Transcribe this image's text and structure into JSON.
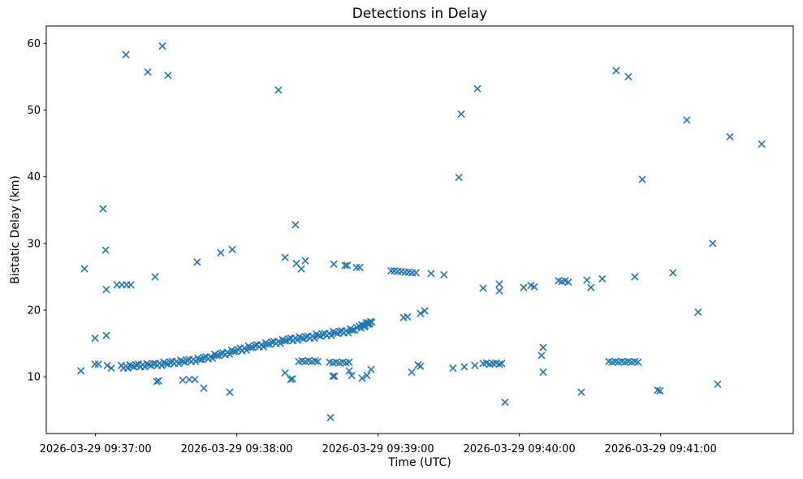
{
  "figure": {
    "title": "Detections in Delay",
    "xlabel": "Time (UTC)",
    "ylabel": "Bistatic Delay (km)"
  },
  "chart_data": {
    "type": "scatter",
    "title": "Detections in Delay",
    "xlabel": "Time (UTC)",
    "ylabel": "Bistatic Delay (km)",
    "marker": "x",
    "marker_color": "#1f77b4",
    "grid": false,
    "legend": null,
    "time_origin": "2026-03-29 09:37:00",
    "x_unit": "seconds relative to time_origin",
    "xlim": [
      -20.9,
      296.3
    ],
    "ylim": [
      1.5,
      62.6
    ],
    "x_ticks": [
      {
        "t": 0,
        "label": "2026-03-29 09:37:00"
      },
      {
        "t": 60,
        "label": "2026-03-29 09:38:00"
      },
      {
        "t": 120,
        "label": "2026-03-29 09:39:00"
      },
      {
        "t": 180,
        "label": "2026-03-29 09:40:00"
      },
      {
        "t": 240,
        "label": "2026-03-29 09:41:00"
      }
    ],
    "y_ticks": [
      10,
      20,
      30,
      40,
      50,
      60
    ],
    "points": [
      [
        28.4,
        59.6
      ],
      [
        12.9,
        58.3
      ],
      [
        22.2,
        55.7
      ],
      [
        30.8,
        55.2
      ],
      [
        3.2,
        35.2
      ],
      [
        77.7,
        53.0
      ],
      [
        84.9,
        32.8
      ],
      [
        221.1,
        55.9
      ],
      [
        226.3,
        55.0
      ],
      [
        162.2,
        53.2
      ],
      [
        155.3,
        49.4
      ],
      [
        154.3,
        39.9
      ],
      [
        251.1,
        48.5
      ],
      [
        269.4,
        46.0
      ],
      [
        282.9,
        44.9
      ],
      [
        232.2,
        39.6
      ],
      [
        262.1,
        30.0
      ],
      [
        -4.7,
        26.2
      ],
      [
        4.3,
        29.0
      ],
      [
        43.2,
        27.2
      ],
      [
        53.2,
        28.6
      ],
      [
        58.1,
        29.1
      ],
      [
        25.3,
        25.0
      ],
      [
        4.6,
        23.1
      ],
      [
        9.1,
        23.8
      ],
      [
        11.2,
        23.8
      ],
      [
        13.2,
        23.8
      ],
      [
        15.0,
        23.8
      ],
      [
        -0.2,
        15.8
      ],
      [
        4.6,
        16.2
      ],
      [
        -6.2,
        10.9
      ],
      [
        -0.2,
        11.9
      ],
      [
        1.2,
        11.9
      ],
      [
        5.0,
        11.7
      ],
      [
        6.7,
        11.3
      ],
      [
        26.0,
        9.3
      ],
      [
        26.8,
        9.4
      ],
      [
        37.0,
        9.5
      ],
      [
        39.8,
        9.6
      ],
      [
        42.2,
        9.6
      ],
      [
        46.0,
        8.3
      ],
      [
        57.0,
        7.7
      ],
      [
        80.5,
        27.9
      ],
      [
        85.3,
        27.0
      ],
      [
        89.1,
        27.4
      ],
      [
        87.4,
        26.2
      ],
      [
        101.2,
        26.9
      ],
      [
        106.0,
        26.7
      ],
      [
        106.9,
        26.7
      ],
      [
        110.8,
        26.4
      ],
      [
        112.2,
        26.4
      ],
      [
        125.5,
        25.9
      ],
      [
        126.9,
        25.9
      ],
      [
        128.4,
        25.8
      ],
      [
        129.9,
        25.8
      ],
      [
        131.5,
        25.7
      ],
      [
        133.0,
        25.7
      ],
      [
        134.5,
        25.6
      ],
      [
        136.1,
        25.6
      ],
      [
        142.5,
        25.5
      ],
      [
        148.0,
        25.3
      ],
      [
        130.8,
        18.9
      ],
      [
        132.5,
        19.0
      ],
      [
        138.0,
        19.5
      ],
      [
        139.8,
        19.9
      ],
      [
        86.3,
        12.3
      ],
      [
        87.7,
        12.4
      ],
      [
        89.1,
        12.3
      ],
      [
        90.5,
        12.4
      ],
      [
        91.9,
        12.3
      ],
      [
        93.3,
        12.4
      ],
      [
        94.4,
        12.3
      ],
      [
        99.4,
        12.2
      ],
      [
        100.8,
        12.1
      ],
      [
        102.2,
        12.2
      ],
      [
        103.6,
        12.1
      ],
      [
        105.0,
        12.2
      ],
      [
        106.4,
        12.1
      ],
      [
        107.7,
        12.2
      ],
      [
        80.5,
        10.6
      ],
      [
        82.9,
        9.6
      ],
      [
        83.6,
        9.7
      ],
      [
        100.8,
        10.1
      ],
      [
        101.5,
        10.1
      ],
      [
        107.7,
        10.9
      ],
      [
        108.8,
        10.2
      ],
      [
        113.2,
        9.8
      ],
      [
        115.3,
        10.2
      ],
      [
        117.0,
        11.1
      ],
      [
        134.3,
        10.7
      ],
      [
        137.0,
        11.8
      ],
      [
        138.0,
        11.6
      ],
      [
        99.8,
        3.9
      ],
      [
        164.6,
        23.3
      ],
      [
        171.5,
        23.9
      ],
      [
        171.5,
        22.9
      ],
      [
        181.8,
        23.4
      ],
      [
        184.9,
        23.7
      ],
      [
        186.3,
        23.5
      ],
      [
        196.6,
        24.4
      ],
      [
        198.0,
        24.3
      ],
      [
        199.4,
        24.4
      ],
      [
        200.8,
        24.2
      ],
      [
        208.7,
        24.5
      ],
      [
        215.2,
        24.7
      ],
      [
        210.4,
        23.4
      ],
      [
        229.0,
        25.0
      ],
      [
        245.2,
        25.6
      ],
      [
        255.9,
        19.7
      ],
      [
        151.8,
        11.3
      ],
      [
        156.6,
        11.5
      ],
      [
        161.1,
        11.7
      ],
      [
        164.6,
        12.0
      ],
      [
        166.0,
        12.1
      ],
      [
        167.4,
        11.9
      ],
      [
        168.8,
        12.0
      ],
      [
        170.1,
        12.1
      ],
      [
        171.5,
        11.9
      ],
      [
        172.5,
        12.0
      ],
      [
        190.1,
        14.4
      ],
      [
        189.4,
        13.2
      ],
      [
        190.1,
        10.7
      ],
      [
        173.9,
        6.2
      ],
      [
        206.3,
        7.7
      ],
      [
        218.0,
        12.3
      ],
      [
        219.4,
        12.2
      ],
      [
        220.8,
        12.3
      ],
      [
        222.1,
        12.2
      ],
      [
        223.5,
        12.3
      ],
      [
        224.9,
        12.2
      ],
      [
        226.3,
        12.3
      ],
      [
        227.7,
        12.2
      ],
      [
        229.1,
        12.3
      ],
      [
        230.4,
        12.2
      ],
      [
        238.7,
        8.0
      ],
      [
        239.7,
        7.9
      ],
      [
        264.2,
        8.9
      ],
      [
        11.0,
        11.7
      ],
      [
        11.9,
        11.3
      ],
      [
        12.8,
        11.6
      ],
      [
        13.7,
        11.3
      ],
      [
        14.6,
        11.8
      ],
      [
        15.5,
        11.6
      ],
      [
        16.4,
        11.5
      ],
      [
        17.3,
        11.8
      ],
      [
        18.2,
        11.9
      ],
      [
        19.1,
        11.5
      ],
      [
        20.0,
        11.8
      ],
      [
        20.9,
        11.5
      ],
      [
        21.8,
        12.0
      ],
      [
        22.7,
        11.8
      ],
      [
        23.6,
        11.7
      ],
      [
        24.5,
        12.0
      ],
      [
        25.4,
        12.0
      ],
      [
        26.3,
        11.7
      ],
      [
        27.2,
        12.0
      ],
      [
        28.1,
        11.7
      ],
      [
        29.0,
        12.2
      ],
      [
        29.9,
        12.0
      ],
      [
        30.8,
        11.9
      ],
      [
        31.7,
        12.2
      ],
      [
        32.6,
        12.3
      ],
      [
        33.5,
        12.0
      ],
      [
        34.4,
        12.3
      ],
      [
        35.3,
        12.0
      ],
      [
        36.2,
        12.5
      ],
      [
        37.1,
        12.3
      ],
      [
        38.0,
        12.2
      ],
      [
        38.9,
        12.5
      ],
      [
        39.8,
        12.6
      ],
      [
        40.7,
        12.3
      ],
      [
        41.6,
        12.6
      ],
      [
        42.5,
        12.3
      ],
      [
        43.4,
        12.8
      ],
      [
        44.3,
        12.6
      ],
      [
        45.2,
        12.6
      ],
      [
        46.1,
        12.9
      ],
      [
        47.0,
        13.0
      ],
      [
        47.9,
        12.7
      ],
      [
        48.8,
        13.0
      ],
      [
        49.7,
        12.8
      ],
      [
        50.6,
        13.4
      ],
      [
        51.5,
        13.2
      ],
      [
        52.4,
        13.2
      ],
      [
        53.3,
        13.5
      ],
      [
        54.2,
        13.6
      ],
      [
        55.1,
        13.3
      ],
      [
        56.0,
        13.7
      ],
      [
        56.9,
        13.4
      ],
      [
        57.8,
        14.0
      ],
      [
        58.7,
        13.8
      ],
      [
        59.6,
        13.8
      ],
      [
        60.5,
        14.1
      ],
      [
        61.4,
        14.3
      ],
      [
        62.3,
        13.9
      ],
      [
        63.2,
        14.3
      ],
      [
        64.1,
        14.0
      ],
      [
        65.0,
        14.6
      ],
      [
        65.9,
        14.4
      ],
      [
        66.8,
        14.4
      ],
      [
        67.7,
        14.7
      ],
      [
        68.6,
        14.8
      ],
      [
        69.5,
        14.5
      ],
      [
        70.4,
        14.8
      ],
      [
        71.3,
        14.5
      ],
      [
        72.2,
        15.1
      ],
      [
        73.1,
        14.9
      ],
      [
        74.0,
        14.9
      ],
      [
        74.9,
        15.2
      ],
      [
        75.8,
        15.3
      ],
      [
        76.7,
        15.0
      ],
      [
        77.6,
        15.3
      ],
      [
        78.5,
        15.0
      ],
      [
        79.4,
        15.6
      ],
      [
        80.3,
        15.4
      ],
      [
        81.2,
        15.4
      ],
      [
        82.1,
        15.7
      ],
      [
        83.0,
        15.8
      ],
      [
        83.9,
        15.4
      ],
      [
        84.8,
        15.8
      ],
      [
        85.7,
        15.5
      ],
      [
        86.6,
        16.0
      ],
      [
        87.5,
        15.8
      ],
      [
        88.4,
        15.7
      ],
      [
        89.3,
        16.0
      ],
      [
        90.2,
        16.1
      ],
      [
        91.1,
        15.8
      ],
      [
        92.0,
        16.1
      ],
      [
        92.9,
        15.8
      ],
      [
        93.8,
        16.4
      ],
      [
        94.7,
        16.2
      ],
      [
        95.6,
        16.1
      ],
      [
        96.5,
        16.4
      ],
      [
        97.4,
        16.5
      ],
      [
        98.3,
        16.2
      ],
      [
        99.2,
        16.5
      ],
      [
        100.1,
        16.2
      ],
      [
        101.0,
        16.8
      ],
      [
        101.9,
        16.6
      ],
      [
        102.8,
        16.5
      ],
      [
        103.7,
        16.8
      ],
      [
        104.6,
        16.9
      ],
      [
        105.5,
        16.6
      ],
      [
        106.4,
        16.9
      ],
      [
        107.3,
        16.6
      ],
      [
        108.2,
        17.2
      ],
      [
        109.1,
        17.0
      ],
      [
        110.0,
        17.0
      ],
      [
        111.0,
        17.4
      ],
      [
        111.9,
        17.6
      ],
      [
        112.8,
        17.3
      ],
      [
        113.0,
        17.8
      ],
      [
        113.5,
        17.7
      ],
      [
        114.2,
        17.5
      ],
      [
        114.5,
        17.7
      ],
      [
        114.9,
        18.1
      ],
      [
        115.5,
        17.9
      ],
      [
        115.8,
        18.1
      ],
      [
        116.1,
        17.9
      ],
      [
        116.4,
        18.0
      ],
      [
        116.7,
        18.3
      ],
      [
        117.3,
        18.2
      ]
    ]
  }
}
